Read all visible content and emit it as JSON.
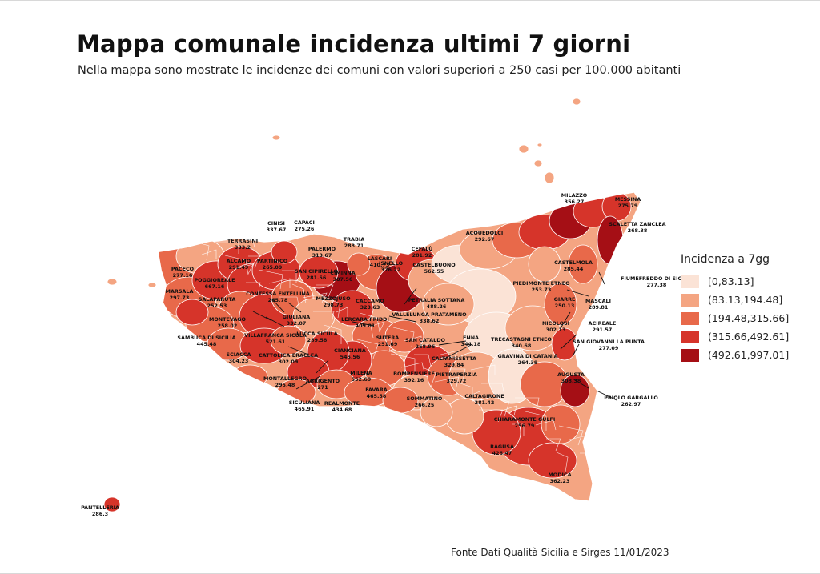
{
  "header": {
    "title": "Mappa comunale incidenza ultimi 7 giorni",
    "subtitle": "Nella mappa sono mostrate le incidenze dei comuni con valori superiori a 250 casi per 100.000 abitanti"
  },
  "legend": {
    "title": "Incidenza a 7gg",
    "classes": [
      {
        "label": "[0,83.13]",
        "color": "#fbe3d6"
      },
      {
        "label": "(83.13,194.48]",
        "color": "#f4a582"
      },
      {
        "label": "(194.48,315.66]",
        "color": "#e8694a"
      },
      {
        "label": "(315.66,492.61]",
        "color": "#d6342a"
      },
      {
        "label": "(492.61,997.01]",
        "color": "#a50f15"
      }
    ]
  },
  "source": "Fonte Dati Qualità Sicilia e Sirges 11/01/2023",
  "labels": [
    {
      "name": "CINISI",
      "value": "337.67"
    },
    {
      "name": "CAPACI",
      "value": "275.26"
    },
    {
      "name": "TERRASINI",
      "value": "333.2"
    },
    {
      "name": "TRABIA",
      "value": "288.71"
    },
    {
      "name": "CEFALÙ",
      "value": "281.92"
    },
    {
      "name": "PACECO",
      "value": "277.16"
    },
    {
      "name": "ALCAMO",
      "value": "291.49"
    },
    {
      "name": "PARTINICO",
      "value": "265.09"
    },
    {
      "name": "PALERMO",
      "value": "313.67"
    },
    {
      "name": "LASCARI",
      "value": "410.73"
    },
    {
      "name": "ISNELLO",
      "value": "376.22"
    },
    {
      "name": "CASTELBUONO",
      "value": "562.55"
    },
    {
      "name": "POGGIOREALE",
      "value": "667.16"
    },
    {
      "name": "SAN CIPIRELLO",
      "value": "281.56"
    },
    {
      "name": "CIMINNA",
      "value": "307.56"
    },
    {
      "name": "MARSALA",
      "value": "297.73"
    },
    {
      "name": "SALAPARUTA",
      "value": "252.53"
    },
    {
      "name": "CONTESSA ENTELLINA",
      "value": "265.78"
    },
    {
      "name": "MEZZOJUSO",
      "value": "298.73"
    },
    {
      "name": "CACCAMO",
      "value": "323.63"
    },
    {
      "name": "PETRALIA SOTTANA",
      "value": "488.26"
    },
    {
      "name": "MONTEVAGO",
      "value": "258.02"
    },
    {
      "name": "GIULIANA",
      "value": "332.07"
    },
    {
      "name": "LERCARA FRIDDI",
      "value": "409.81"
    },
    {
      "name": "VALLELUNGA PRATAMENO",
      "value": "338.62"
    },
    {
      "name": "SAMBUCA DI SICILIA",
      "value": "445.48"
    },
    {
      "name": "VILLAFRANCA SICULA",
      "value": "521.61"
    },
    {
      "name": "LUCCA SICULA",
      "value": "289.58"
    },
    {
      "name": "SUTERA",
      "value": "251.69"
    },
    {
      "name": "SAN CATALDO",
      "value": "268.96"
    },
    {
      "name": "ENNA",
      "value": "344.18"
    },
    {
      "name": "SCIACCA",
      "value": "304.23"
    },
    {
      "name": "CATTOLICA ERACLEA",
      "value": "302.09"
    },
    {
      "name": "CIANCIANA",
      "value": "545.56"
    },
    {
      "name": "CALTANISSETTA",
      "value": "329.84"
    },
    {
      "name": "MONTALLEGRO",
      "value": "295.48"
    },
    {
      "name": "AGRIGENTO",
      "value": "271"
    },
    {
      "name": "MILENA",
      "value": "552.69"
    },
    {
      "name": "BOMPENSIERE",
      "value": "392.16"
    },
    {
      "name": "PIETRAPERZIA",
      "value": "329.72"
    },
    {
      "name": "SICULIANA",
      "value": "465.91"
    },
    {
      "name": "FAVARA",
      "value": "465.58"
    },
    {
      "name": "REALMONTE",
      "value": "434.68"
    },
    {
      "name": "SOMMATINO",
      "value": "266.25"
    },
    {
      "name": "CALTAGIRONE",
      "value": "281.42"
    },
    {
      "name": "MILAZZO",
      "value": "356.27"
    },
    {
      "name": "MESSINA",
      "value": "275.79"
    },
    {
      "name": "ACQUEDOLCI",
      "value": "292.67"
    },
    {
      "name": "SCALETTA ZANCLEA",
      "value": "268.38"
    },
    {
      "name": "CASTELMOLA",
      "value": "285.44"
    },
    {
      "name": "PIEDIMONTE ETNEO",
      "value": "253.73"
    },
    {
      "name": "FIUMEFREDDO DI SICILIA",
      "value": "277.38"
    },
    {
      "name": "GIARRE",
      "value": "250.13"
    },
    {
      "name": "MASCALI",
      "value": "289.81"
    },
    {
      "name": "NICOLOSI",
      "value": "302.13"
    },
    {
      "name": "ACIREALE",
      "value": "291.57"
    },
    {
      "name": "TRECASTAGNI ETNEO",
      "value": "340.68"
    },
    {
      "name": "SAN GIOVANNI LA PUNTA",
      "value": "277.09"
    },
    {
      "name": "GRAVINA DI CATANIA",
      "value": "264.39"
    },
    {
      "name": "AUGUSTA",
      "value": "308.38"
    },
    {
      "name": "PRIOLO GARGALLO",
      "value": "262.97"
    },
    {
      "name": "CHIARAMONTE GULFI",
      "value": "256.79"
    },
    {
      "name": "RAGUSA",
      "value": "426.47"
    },
    {
      "name": "MODICA",
      "value": "362.23"
    },
    {
      "name": "PANTELLERIA",
      "value": "286.3"
    }
  ]
}
